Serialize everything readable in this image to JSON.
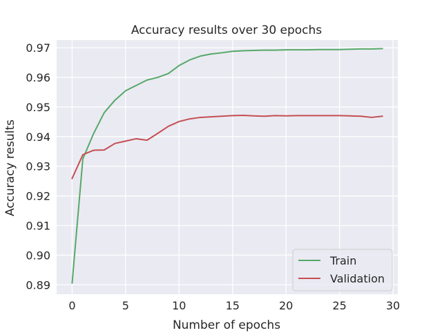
{
  "chart_data": {
    "type": "line",
    "title": "Accuracy results over 30 epochs",
    "xlabel": "Number of epochs",
    "ylabel": "Accuracy results",
    "xlim": [
      -1.45,
      30.45
    ],
    "ylim": [
      0.8868,
      0.9726
    ],
    "xticks": [
      0,
      5,
      10,
      15,
      20,
      25,
      30
    ],
    "xtick_labels": [
      "0",
      "5",
      "10",
      "15",
      "20",
      "25",
      "30"
    ],
    "yticks": [
      0.89,
      0.9,
      0.91,
      0.92,
      0.93,
      0.94,
      0.95,
      0.96,
      0.97
    ],
    "ytick_labels": [
      "0.89",
      "0.90",
      "0.91",
      "0.92",
      "0.93",
      "0.94",
      "0.95",
      "0.96",
      "0.97"
    ],
    "grid": true,
    "legend_position": "lower-right",
    "background": "#eaeaf2",
    "x": [
      0,
      1,
      2,
      3,
      4,
      5,
      6,
      7,
      8,
      9,
      10,
      11,
      12,
      13,
      14,
      15,
      16,
      17,
      18,
      19,
      20,
      21,
      22,
      23,
      24,
      25,
      26,
      27,
      28,
      29
    ],
    "series": [
      {
        "name": "Train",
        "color": "#55a868",
        "values": [
          0.8906,
          0.9325,
          0.941,
          0.9481,
          0.9523,
          0.9555,
          0.9573,
          0.9591,
          0.96,
          0.9613,
          0.964,
          0.9659,
          0.9672,
          0.9679,
          0.9683,
          0.9688,
          0.969,
          0.9691,
          0.9692,
          0.9692,
          0.9693,
          0.9693,
          0.9693,
          0.9694,
          0.9694,
          0.9694,
          0.9695,
          0.9696,
          0.9696,
          0.9697
        ]
      },
      {
        "name": "Validation",
        "color": "#c44e52",
        "values": [
          0.9259,
          0.9339,
          0.9354,
          0.9355,
          0.9377,
          0.9385,
          0.9393,
          0.9388,
          0.9411,
          0.9435,
          0.9451,
          0.946,
          0.9465,
          0.9467,
          0.9469,
          0.9471,
          0.9472,
          0.947,
          0.9469,
          0.9471,
          0.947,
          0.9471,
          0.9471,
          0.9471,
          0.9471,
          0.9471,
          0.947,
          0.9469,
          0.9465,
          0.9469
        ]
      }
    ]
  }
}
